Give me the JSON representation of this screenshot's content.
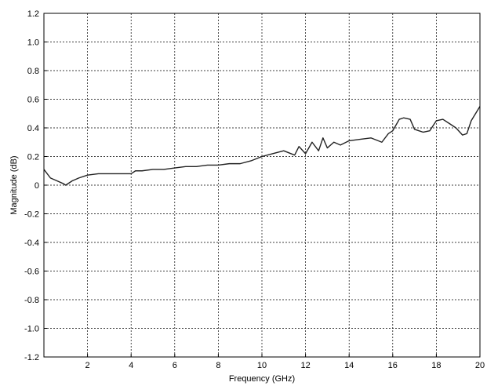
{
  "chart_data": {
    "type": "line",
    "title": "",
    "xlabel": "Frequency (GHz)",
    "ylabel": "Magnitude (dB)",
    "xlim": [
      0,
      20
    ],
    "ylim": [
      -1.2,
      1.2
    ],
    "grid": true,
    "x_ticks": [
      2,
      4,
      6,
      8,
      10,
      12,
      14,
      16,
      18,
      20
    ],
    "x_tick_labels": [
      "2",
      "4",
      "6",
      "8",
      "10",
      "12",
      "14",
      "16",
      "18",
      "20"
    ],
    "y_ticks": [
      1.2,
      1.0,
      0.8,
      0.6,
      0.4,
      0.2,
      0,
      -0.2,
      -0.4,
      -0.6,
      -0.8,
      -1.0,
      -1.2
    ],
    "y_tick_labels": [
      "1.2",
      "1.0",
      "0.8",
      "0.6",
      "0.4",
      "0.2",
      "0",
      "-0.2",
      "-0.4",
      "-0.6",
      "-0.8",
      "-1.0",
      "-1.2"
    ],
    "series": [
      {
        "color": "#222222",
        "x": [
          0,
          0.3,
          0.6,
          0.9,
          1.0,
          1.3,
          1.6,
          2.0,
          2.5,
          3.0,
          3.5,
          4.0,
          4.2,
          4.5,
          5.0,
          5.5,
          6.0,
          6.5,
          7.0,
          7.5,
          8.0,
          8.5,
          9.0,
          9.5,
          10.0,
          10.5,
          11.0,
          11.5,
          11.7,
          12.0,
          12.3,
          12.6,
          12.8,
          13.0,
          13.3,
          13.6,
          14.0,
          14.5,
          15.0,
          15.5,
          15.8,
          16.0,
          16.3,
          16.5,
          16.8,
          17.0,
          17.2,
          17.4,
          17.7,
          18.0,
          18.3,
          18.6,
          18.9,
          19.2,
          19.4,
          19.6,
          19.8,
          20.0
        ],
        "y": [
          0.11,
          0.05,
          0.03,
          0.01,
          0.0,
          0.03,
          0.05,
          0.07,
          0.08,
          0.08,
          0.08,
          0.08,
          0.1,
          0.1,
          0.11,
          0.11,
          0.12,
          0.13,
          0.13,
          0.14,
          0.14,
          0.15,
          0.15,
          0.17,
          0.2,
          0.22,
          0.24,
          0.21,
          0.27,
          0.22,
          0.3,
          0.24,
          0.33,
          0.26,
          0.3,
          0.28,
          0.31,
          0.32,
          0.33,
          0.3,
          0.36,
          0.38,
          0.46,
          0.47,
          0.46,
          0.39,
          0.38,
          0.37,
          0.38,
          0.45,
          0.46,
          0.43,
          0.4,
          0.35,
          0.36,
          0.45,
          0.5,
          0.55
        ]
      }
    ]
  }
}
